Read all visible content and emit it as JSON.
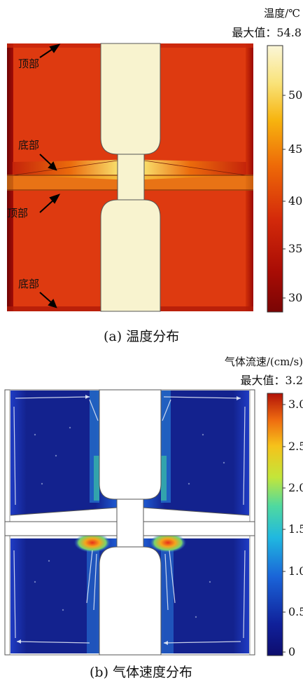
{
  "panel_a": {
    "unit_label": "温度/℃",
    "max_label": "最大值：54.8",
    "annotations": [
      "顶部",
      "底部",
      "顶部",
      "底部"
    ],
    "colorbar_ticks": [
      "50",
      "45",
      "40",
      "35",
      "30"
    ],
    "caption": "(a) 温度分布"
  },
  "panel_b": {
    "unit_label": "气体流速/(cm/s)",
    "max_label": "最大值：3.2",
    "colorbar_ticks": [
      "3.0",
      "2.5",
      "2.0",
      "1.5",
      "1.0",
      "0.5",
      "0"
    ],
    "caption": "(b) 气体速度分布"
  },
  "colors": {
    "temp_hot": "#e33b12",
    "temp_dark": "#8f0a05",
    "temp_max": "#f8f3cf",
    "vel_low": "#101b8a",
    "vel_high": "#dc2b14"
  }
}
